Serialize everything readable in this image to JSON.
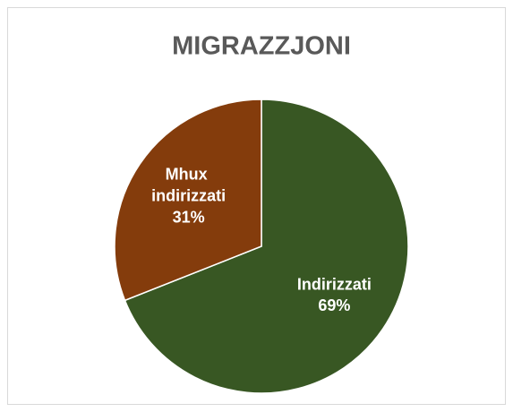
{
  "chart_data": {
    "type": "pie",
    "title": "MIGRAZZJONI",
    "categories": [
      "Indirizzati",
      "Mhux indirizzati"
    ],
    "values": [
      69,
      31
    ],
    "value_labels": [
      "69%",
      "31%"
    ],
    "colors": [
      "#385723",
      "#843c0c"
    ]
  }
}
